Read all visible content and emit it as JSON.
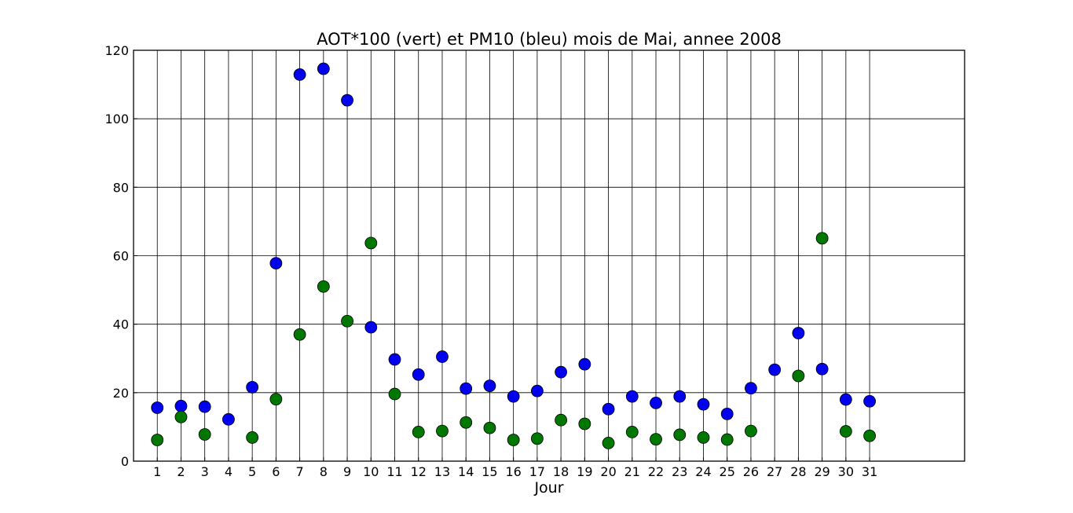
{
  "chart_data": {
    "type": "scatter",
    "title": "AOT*100 (vert) et PM10 (bleu) mois de Mai, annee 2008",
    "xlabel": "Jour",
    "ylabel": "",
    "xlim": [
      0,
      35
    ],
    "ylim": [
      0,
      120
    ],
    "x_ticks": [
      1,
      2,
      3,
      4,
      5,
      6,
      7,
      8,
      9,
      10,
      11,
      12,
      13,
      14,
      15,
      16,
      17,
      18,
      19,
      20,
      21,
      22,
      23,
      24,
      25,
      26,
      27,
      28,
      29,
      30,
      31
    ],
    "y_ticks": [
      0,
      20,
      40,
      60,
      80,
      100,
      120
    ],
    "grid": true,
    "series": [
      {
        "color": "#0000ee",
        "points": [
          [
            1,
            15.6
          ],
          [
            2,
            16.1
          ],
          [
            3,
            15.9
          ],
          [
            4,
            12.2
          ],
          [
            5,
            21.6
          ],
          [
            6,
            57.8
          ],
          [
            7,
            112.9
          ],
          [
            8,
            114.6
          ],
          [
            9,
            105.4
          ],
          [
            10,
            39.1
          ],
          [
            11,
            29.7
          ],
          [
            12,
            25.3
          ],
          [
            13,
            30.5
          ],
          [
            14,
            21.2
          ],
          [
            15,
            22.0
          ],
          [
            16,
            18.9
          ],
          [
            17,
            20.5
          ],
          [
            18,
            26.0
          ],
          [
            19,
            28.3
          ],
          [
            20,
            15.2
          ],
          [
            21,
            18.9
          ],
          [
            22,
            17.0
          ],
          [
            23,
            18.9
          ],
          [
            24,
            16.6
          ],
          [
            25,
            13.8
          ],
          [
            26,
            21.3
          ],
          [
            27,
            26.7
          ],
          [
            28,
            37.4
          ],
          [
            29,
            26.9
          ],
          [
            30,
            18.0
          ],
          [
            31,
            17.5
          ]
        ]
      },
      {
        "color": "#007700",
        "points": [
          [
            1,
            6.2
          ],
          [
            2,
            12.9
          ],
          [
            3,
            7.8
          ],
          [
            5,
            6.9
          ],
          [
            6,
            18.1
          ],
          [
            7,
            37.0
          ],
          [
            8,
            51.0
          ],
          [
            9,
            40.9
          ],
          [
            10,
            63.7
          ],
          [
            11,
            19.6
          ],
          [
            12,
            8.5
          ],
          [
            13,
            8.8
          ],
          [
            14,
            11.3
          ],
          [
            15,
            9.7
          ],
          [
            16,
            6.2
          ],
          [
            17,
            6.6
          ],
          [
            18,
            12.0
          ],
          [
            19,
            10.9
          ],
          [
            20,
            5.3
          ],
          [
            21,
            8.5
          ],
          [
            22,
            6.4
          ],
          [
            23,
            7.7
          ],
          [
            24,
            6.9
          ],
          [
            25,
            6.3
          ],
          [
            26,
            8.8
          ],
          [
            28,
            24.9
          ],
          [
            29,
            65.1
          ],
          [
            30,
            8.7
          ],
          [
            31,
            7.4
          ]
        ]
      }
    ]
  }
}
